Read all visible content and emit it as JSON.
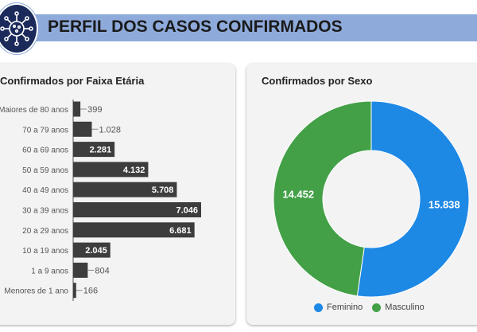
{
  "header": {
    "title": "PERFIL DOS CASOS CONFIRMADOS",
    "icon": "virus-icon"
  },
  "chart_data": [
    {
      "type": "bar",
      "orientation": "horizontal",
      "title": "Confirmados por Faixa Etária",
      "categories": [
        "Maiores de 80 anos",
        "70 a 79 anos",
        "60 a 69 anos",
        "50 a 59 anos",
        "40 a 49 anos",
        "30 a 39 anos",
        "20 a 29 anos",
        "10 a 19 anos",
        "1 a 9 anos",
        "Menores de 1 ano"
      ],
      "values": [
        399,
        1028,
        2281,
        4132,
        5708,
        7046,
        6681,
        2045,
        804,
        166
      ],
      "labels": [
        "399",
        "1.028",
        "2.281",
        "4.132",
        "5.708",
        "7.046",
        "6.681",
        "2.045",
        "804",
        "166"
      ],
      "color": "#3d3d3d",
      "xlim": [
        0,
        7046
      ]
    },
    {
      "type": "pie",
      "donut": true,
      "title": "Confirmados por Sexo",
      "categories": [
        "Feminino",
        "Masculino"
      ],
      "values": [
        15838,
        14452
      ],
      "labels": [
        "15.838",
        "14.452"
      ],
      "colors": [
        "#1e88e5",
        "#43a047"
      ],
      "legend": "bottom"
    }
  ]
}
